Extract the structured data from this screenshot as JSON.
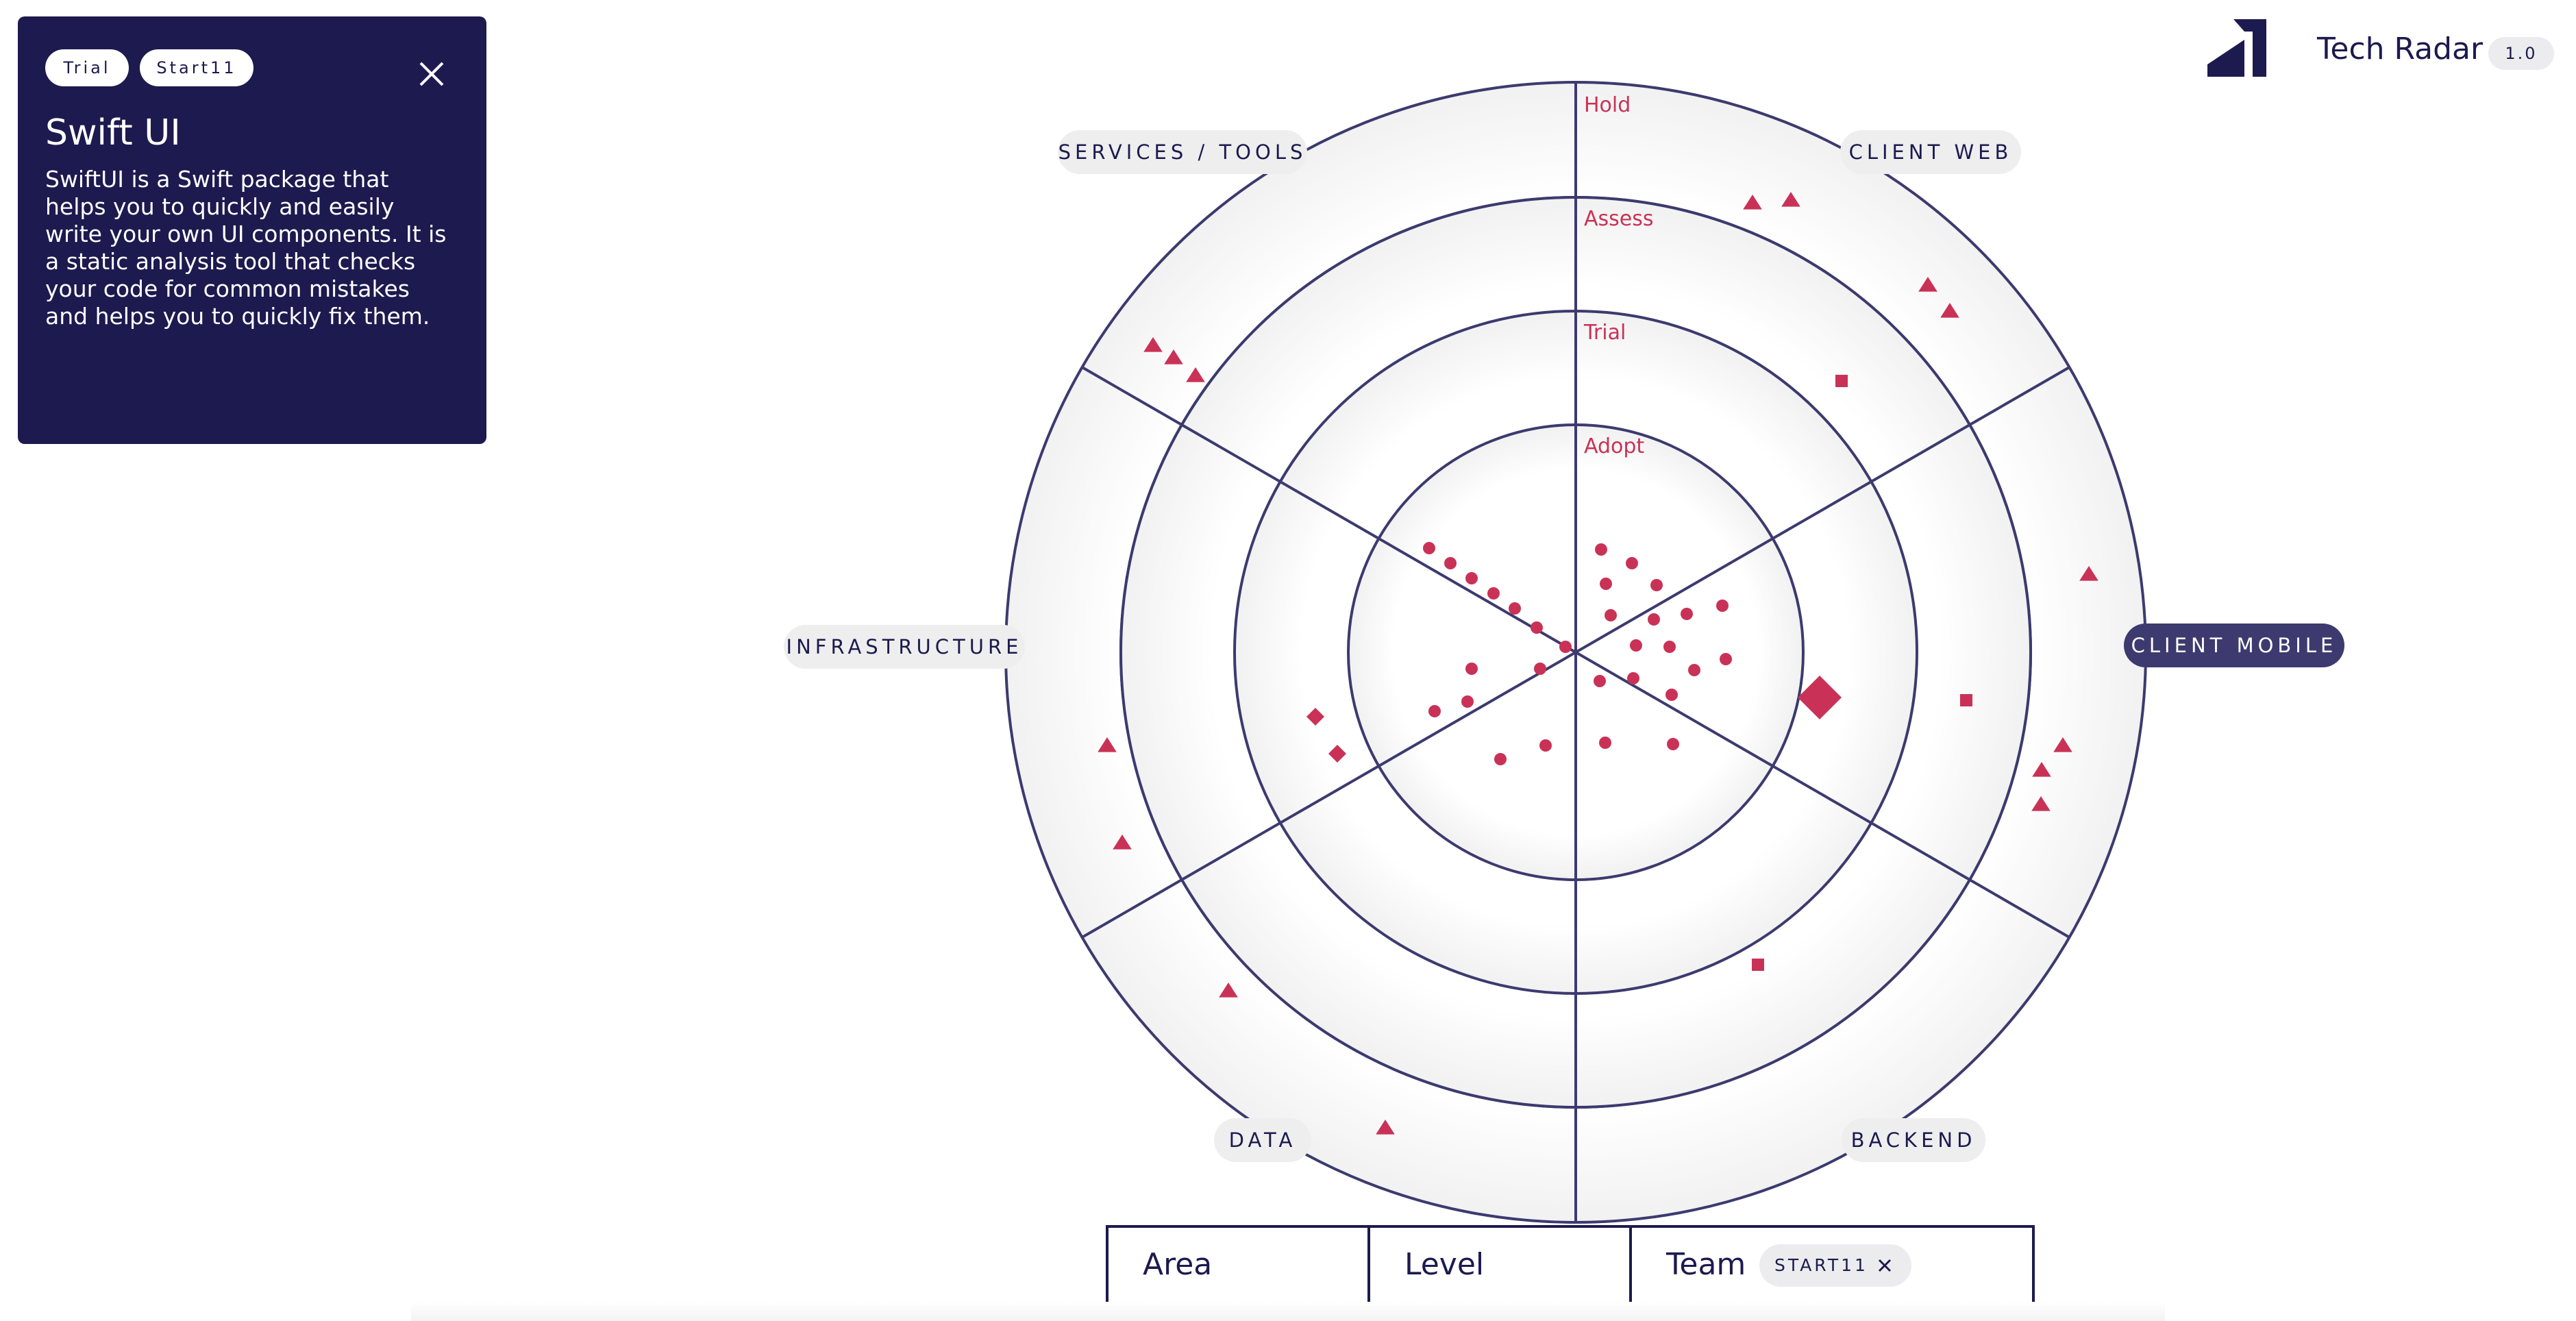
{
  "detail": {
    "tags": [
      "Trial",
      "Start11"
    ],
    "title": "Swift UI",
    "description": "SwiftUI is a Swift package that helps you to quickly and easily write your own UI components. It is a static analysis tool that checks your code for common mistakes and helps you to quickly fix them.",
    "close_icon": "close-icon"
  },
  "header": {
    "logo_icon": "logo-icon",
    "title": "Tech Radar",
    "version": "1.0"
  },
  "radar": {
    "quadrants": [
      "SERVICES / TOOLS",
      "CLIENT WEB",
      "INFRASTRUCTURE",
      "CLIENT MOBILE",
      "DATA",
      "BACKEND"
    ],
    "active_quadrant": "CLIENT MOBILE",
    "rings": [
      "Hold",
      "Assess",
      "Trial",
      "Adopt"
    ],
    "colors": {
      "line": "#3c3a6e",
      "blip": "#c93256",
      "card": "#1c1a4e"
    }
  },
  "filters": {
    "area_label": "Area",
    "level_label": "Level",
    "team_label": "Team",
    "team_chip": "START11"
  }
}
